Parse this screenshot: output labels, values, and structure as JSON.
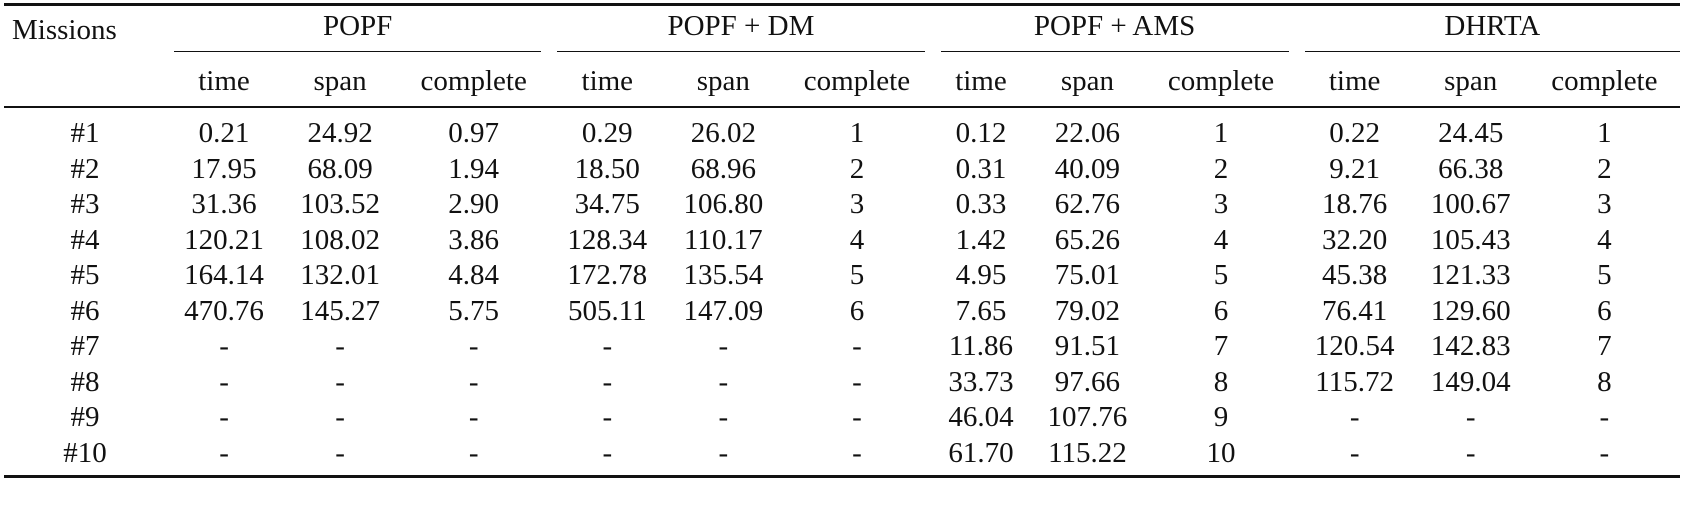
{
  "table": {
    "missions_header": "Missions",
    "groups": [
      {
        "name": "POPF",
        "columns": [
          "time",
          "span",
          "complete"
        ]
      },
      {
        "name": "POPF + DM",
        "columns": [
          "time",
          "span",
          "complete"
        ]
      },
      {
        "name": "POPF + AMS",
        "columns": [
          "time",
          "span",
          "complete"
        ]
      },
      {
        "name": "DHRTA",
        "columns": [
          "time",
          "span",
          "complete"
        ]
      }
    ],
    "rows": [
      [
        "#1",
        "0.21",
        "24.92",
        "0.97",
        "0.29",
        "26.02",
        "1",
        "0.12",
        "22.06",
        "1",
        "0.22",
        "24.45",
        "1"
      ],
      [
        "#2",
        "17.95",
        "68.09",
        "1.94",
        "18.50",
        "68.96",
        "2",
        "0.31",
        "40.09",
        "2",
        "9.21",
        "66.38",
        "2"
      ],
      [
        "#3",
        "31.36",
        "103.52",
        "2.90",
        "34.75",
        "106.80",
        "3",
        "0.33",
        "62.76",
        "3",
        "18.76",
        "100.67",
        "3"
      ],
      [
        "#4",
        "120.21",
        "108.02",
        "3.86",
        "128.34",
        "110.17",
        "4",
        "1.42",
        "65.26",
        "4",
        "32.20",
        "105.43",
        "4"
      ],
      [
        "#5",
        "164.14",
        "132.01",
        "4.84",
        "172.78",
        "135.54",
        "5",
        "4.95",
        "75.01",
        "5",
        "45.38",
        "121.33",
        "5"
      ],
      [
        "#6",
        "470.76",
        "145.27",
        "5.75",
        "505.11",
        "147.09",
        "6",
        "7.65",
        "79.02",
        "6",
        "76.41",
        "129.60",
        "6"
      ],
      [
        "#7",
        "-",
        "-",
        "-",
        "-",
        "-",
        "-",
        "11.86",
        "91.51",
        "7",
        "120.54",
        "142.83",
        "7"
      ],
      [
        "#8",
        "-",
        "-",
        "-",
        "-",
        "-",
        "-",
        "33.73",
        "97.66",
        "8",
        "115.72",
        "149.04",
        "8"
      ],
      [
        "#9",
        "-",
        "-",
        "-",
        "-",
        "-",
        "-",
        "46.04",
        "107.76",
        "9",
        "-",
        "-",
        "-"
      ],
      [
        "#10",
        "-",
        "-",
        "-",
        "-",
        "-",
        "-",
        "61.70",
        "115.22",
        "10",
        "-",
        "-",
        "-"
      ]
    ]
  }
}
